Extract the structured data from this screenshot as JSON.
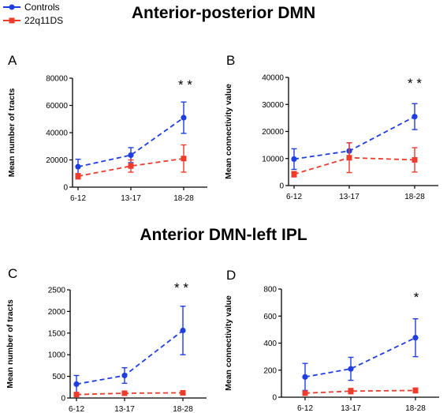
{
  "legend": {
    "controls": "Controls",
    "deletion": "22q11DS"
  },
  "colors": {
    "controls": "#1f3ee0",
    "deletion": "#ee3b2b"
  },
  "sections": {
    "top": "Anterior-posterior DMN",
    "bottom": "Anterior DMN-left IPL"
  },
  "chart_data": [
    {
      "type": "line",
      "panel": "A",
      "ylabel": "Mean number of tracts",
      "categories": [
        "6-12",
        "13-17",
        "18-28"
      ],
      "ylim": [
        0,
        80000
      ],
      "yticks": [
        0,
        20000,
        40000,
        60000,
        80000
      ],
      "ytick_labels": [
        "0",
        "20000",
        "40000",
        "60000",
        "80000"
      ],
      "significance": "* *",
      "series": [
        {
          "name": "Controls",
          "values": [
            15000,
            23500,
            51000
          ],
          "errors": [
            5500,
            5500,
            11500
          ]
        },
        {
          "name": "22q11DS",
          "values": [
            8000,
            15500,
            21000
          ],
          "errors": [
            2000,
            4500,
            10000
          ]
        }
      ]
    },
    {
      "type": "line",
      "panel": "B",
      "ylabel": "Mean connectivity value",
      "categories": [
        "6-12",
        "13-17",
        "18-28"
      ],
      "ylim": [
        0,
        40000
      ],
      "yticks": [
        0,
        10000,
        20000,
        30000,
        40000
      ],
      "ytick_labels": [
        "0",
        "10000",
        "20000",
        "30000",
        "40000"
      ],
      "significance": "* *",
      "series": [
        {
          "name": "Controls",
          "values": [
            9800,
            12800,
            25500
          ],
          "errors": [
            3800,
            3000,
            4800
          ]
        },
        {
          "name": "22q11DS",
          "values": [
            4200,
            10300,
            9500
          ],
          "errors": [
            1000,
            5500,
            4500
          ]
        }
      ]
    },
    {
      "type": "line",
      "panel": "C",
      "ylabel": "Mean number of tracts",
      "categories": [
        "6-12",
        "13-17",
        "18-28"
      ],
      "ylim": [
        0,
        2500
      ],
      "yticks": [
        0,
        500,
        1000,
        1500,
        2000,
        2500
      ],
      "ytick_labels": [
        "0",
        "500",
        "1000",
        "1500",
        "2000",
        "2500"
      ],
      "significance": "* *",
      "series": [
        {
          "name": "Controls",
          "values": [
            320,
            520,
            1560
          ],
          "errors": [
            200,
            180,
            560
          ]
        },
        {
          "name": "22q11DS",
          "values": [
            80,
            110,
            120
          ],
          "errors": [
            30,
            30,
            30
          ]
        }
      ]
    },
    {
      "type": "line",
      "panel": "D",
      "ylabel": "Mean connectivity value",
      "categories": [
        "6-12",
        "13-17",
        "18-28"
      ],
      "ylim": [
        0,
        800
      ],
      "yticks": [
        0,
        200,
        400,
        600,
        800
      ],
      "ytick_labels": [
        "0",
        "200",
        "400",
        "600",
        "800"
      ],
      "significance": "*",
      "series": [
        {
          "name": "Controls",
          "values": [
            150,
            210,
            440
          ],
          "errors": [
            100,
            85,
            140
          ]
        },
        {
          "name": "22q11DS",
          "values": [
            30,
            45,
            50
          ],
          "errors": [
            15,
            20,
            18
          ]
        }
      ]
    }
  ]
}
